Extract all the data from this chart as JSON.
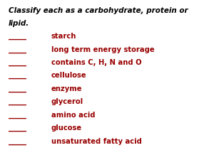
{
  "title_line1": "Classify each as a carbohydrate, protein or",
  "title_line2": "lipid.",
  "items": [
    [
      "_____",
      "starch"
    ],
    [
      "_____",
      "long term energy storage"
    ],
    [
      "_____",
      "contains C, H, N and O"
    ],
    [
      "_____",
      "cellulose"
    ],
    [
      "_____",
      "enzyme"
    ],
    [
      "_____",
      "glycerol"
    ],
    [
      "_____",
      "amino acid"
    ],
    [
      "_____",
      "glucose"
    ],
    [
      "_____",
      "unsaturated fatty acid"
    ]
  ],
  "title_color": "#000000",
  "item_color": "#990000",
  "bg_color": "#ffffff",
  "title_fontsize": 7.5,
  "item_fontsize": 7.2,
  "fig_width": 3.0,
  "fig_height": 2.25,
  "dpi": 100
}
